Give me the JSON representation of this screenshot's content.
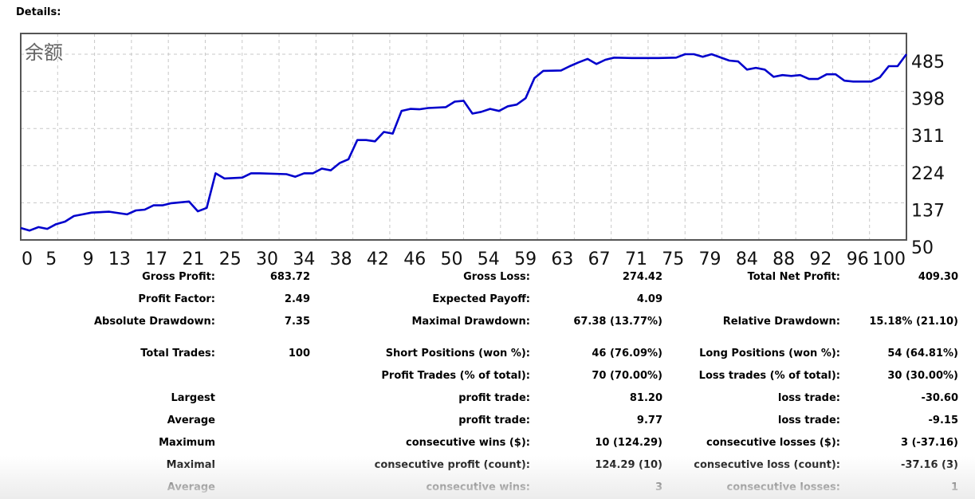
{
  "header": {
    "title": "Details:"
  },
  "chart_data": {
    "type": "line",
    "title": "余额",
    "xlim": [
      0,
      100
    ],
    "ylim": [
      50,
      534
    ],
    "grid": true,
    "line_color": "#0000cc",
    "x_tick_labels": [
      "0",
      "5",
      "9",
      "13",
      "17",
      "21",
      "25",
      "30",
      "34",
      "38",
      "42",
      "46",
      "50",
      "54",
      "59",
      "63",
      "67",
      "71",
      "75",
      "79",
      "84",
      "88",
      "92",
      "96",
      "100"
    ],
    "y_ticks": [
      50,
      137,
      224,
      311,
      398,
      485
    ],
    "series": [
      {
        "x": [
          0,
          1,
          2,
          3,
          4,
          5,
          6,
          7,
          8,
          10,
          12,
          13,
          14,
          15,
          16,
          17,
          19,
          20,
          21,
          22,
          23,
          25,
          26,
          27,
          30,
          31,
          32,
          33,
          34,
          35,
          36,
          37,
          38,
          39,
          40,
          41,
          42,
          43,
          44,
          45,
          46,
          48,
          49,
          50,
          51,
          52,
          53,
          54,
          55,
          56,
          57,
          58,
          59,
          61,
          62,
          63,
          64,
          65,
          66,
          67,
          69,
          72,
          74,
          75,
          76,
          77,
          78,
          80,
          81,
          82,
          83,
          84,
          85,
          86,
          87,
          88,
          89,
          90,
          91,
          92,
          93,
          94,
          96,
          97,
          98,
          99,
          100
        ],
        "y": [
          78,
          72,
          80,
          76,
          87,
          93,
          106,
          110,
          114,
          116,
          110,
          119,
          121,
          131,
          131,
          136,
          140,
          117,
          125,
          206,
          194,
          196,
          206,
          206,
          204,
          198,
          206,
          206,
          217,
          213,
          230,
          239,
          284,
          284,
          281,
          303,
          299,
          352,
          357,
          356,
          359,
          361,
          374,
          376,
          346,
          350,
          357,
          352,
          363,
          367,
          382,
          429,
          446,
          447,
          457,
          466,
          474,
          462,
          472,
          477,
          476,
          476,
          477,
          485,
          485,
          479,
          485,
          470,
          468,
          449,
          453,
          449,
          432,
          436,
          434,
          436,
          427,
          427,
          438,
          438,
          423,
          421,
          421,
          431,
          457,
          457,
          485
        ]
      }
    ]
  },
  "stats": [
    [
      {
        "l": "Gross Profit:",
        "v": "683.72"
      },
      {
        "l": "Gross Loss:",
        "v": "274.42"
      },
      {
        "l": "Total Net Profit:",
        "v": "409.30"
      }
    ],
    [
      {
        "l": "Profit Factor:",
        "v": "2.49"
      },
      {
        "l": "Expected Payoff:",
        "v": "4.09"
      },
      {
        "l": "",
        "v": ""
      }
    ],
    [
      {
        "l": "Absolute Drawdown:",
        "v": "7.35"
      },
      {
        "l": "Maximal Drawdown:",
        "v": "67.38 (13.77%)"
      },
      {
        "l": "Relative Drawdown:",
        "v": "15.18% (21.10)"
      }
    ],
    [
      {
        "l": "Total Trades:",
        "v": "100"
      },
      {
        "l": "Short Positions (won %):",
        "v": "46 (76.09%)"
      },
      {
        "l": "Long Positions (won %):",
        "v": "54 (64.81%)"
      }
    ],
    [
      {
        "l": "",
        "v": ""
      },
      {
        "l": "Profit Trades (% of total):",
        "v": "70 (70.00%)"
      },
      {
        "l": "Loss trades (% of total):",
        "v": "30 (30.00%)"
      }
    ],
    [
      {
        "l": "Largest",
        "v": ""
      },
      {
        "l": "profit trade:",
        "v": "81.20"
      },
      {
        "l": "loss trade:",
        "v": "-30.60"
      }
    ],
    [
      {
        "l": "Average",
        "v": ""
      },
      {
        "l": "profit trade:",
        "v": "9.77"
      },
      {
        "l": "loss trade:",
        "v": "-9.15"
      }
    ],
    [
      {
        "l": "Maximum",
        "v": ""
      },
      {
        "l": "consecutive wins ($):",
        "v": "10 (124.29)"
      },
      {
        "l": "consecutive losses ($):",
        "v": "3 (-37.16)"
      }
    ],
    [
      {
        "l": "Maximal",
        "v": ""
      },
      {
        "l": "consecutive profit (count):",
        "v": "124.29 (10)"
      },
      {
        "l": "consecutive loss (count):",
        "v": "-37.16 (3)"
      }
    ],
    [
      {
        "l": "Average",
        "v": ""
      },
      {
        "l": "consecutive wins:",
        "v": "3"
      },
      {
        "l": "consecutive losses:",
        "v": "1"
      }
    ]
  ]
}
